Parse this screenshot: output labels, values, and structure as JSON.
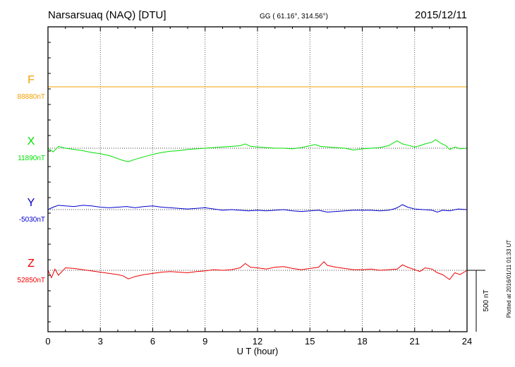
{
  "header": {
    "station": "Narsarsuaq (NAQ)  [DTU]",
    "coords": "GG ( 61.16°, 314.56°)",
    "date": "2015/12/11"
  },
  "side_note": "Plotted at 2016/01/11 01:33 UT",
  "colors": {
    "F": "#f0a000",
    "X": "#00e000",
    "Y": "#0000cc",
    "Z": "#ee0000",
    "axis": "#000000",
    "grid": "#333333"
  },
  "chart_data": {
    "type": "line",
    "title": "Narsarsuaq (NAQ)  [DTU]",
    "xlabel": "U T (hour)",
    "xlim": [
      0,
      24
    ],
    "xticks": [
      "0",
      "3",
      "6",
      "9",
      "12",
      "15",
      "18",
      "21",
      "24"
    ],
    "grid": true,
    "scale_bar": {
      "label": "500 nT",
      "nT": 500
    },
    "series": [
      {
        "name": "F",
        "baseline_label": "88880nT",
        "baseline_nT": 88880,
        "hours": [
          0,
          24
        ],
        "offsets_nT": [
          0,
          0
        ]
      },
      {
        "name": "X",
        "baseline_label": "11890nT",
        "baseline_nT": 11890,
        "hours": [
          0,
          0.3,
          0.6,
          1,
          1.5,
          2,
          2.5,
          3,
          3.5,
          4,
          4.3,
          4.6,
          5,
          5.5,
          6,
          6.5,
          7,
          7.5,
          8,
          8.5,
          9,
          9.5,
          10,
          10.5,
          11,
          11.3,
          11.6,
          12,
          12.5,
          13,
          13.5,
          14,
          14.5,
          15,
          15.3,
          15.6,
          16,
          16.5,
          17,
          17.5,
          18,
          18.5,
          19,
          19.5,
          19.8,
          20,
          20.3,
          20.6,
          21,
          21.3,
          21.6,
          22,
          22.2,
          22.5,
          22.8,
          23,
          23.3,
          23.6,
          24
        ],
        "offsets_nT": [
          0,
          -30,
          15,
          0,
          -10,
          -20,
          -35,
          -45,
          -60,
          -85,
          -100,
          -110,
          -90,
          -70,
          -50,
          -35,
          -25,
          -20,
          -10,
          -5,
          0,
          5,
          10,
          15,
          20,
          35,
          15,
          10,
          5,
          0,
          0,
          -5,
          5,
          20,
          30,
          15,
          10,
          5,
          0,
          -15,
          -5,
          0,
          5,
          20,
          45,
          60,
          35,
          25,
          10,
          20,
          35,
          50,
          70,
          40,
          20,
          -10,
          10,
          -5,
          0
        ]
      },
      {
        "name": "Y",
        "baseline_label": "-5030nT",
        "baseline_nT": -5030,
        "hours": [
          0,
          0.3,
          0.6,
          1,
          1.5,
          2,
          2.5,
          3,
          3.5,
          4,
          4.5,
          5,
          5.5,
          6,
          6.5,
          7,
          7.5,
          8,
          8.5,
          9,
          9.5,
          10,
          10.5,
          11,
          11.5,
          12,
          12.5,
          13,
          13.5,
          14,
          14.5,
          15,
          15.5,
          16,
          16.5,
          17,
          17.5,
          18,
          18.5,
          19,
          19.5,
          19.8,
          20,
          20.3,
          20.6,
          21,
          21.5,
          22,
          22.3,
          22.6,
          23,
          23.5,
          24
        ],
        "offsets_nT": [
          0,
          20,
          35,
          30,
          25,
          35,
          30,
          20,
          15,
          20,
          25,
          15,
          25,
          30,
          20,
          15,
          10,
          5,
          10,
          15,
          5,
          -5,
          0,
          -5,
          -10,
          -5,
          -10,
          -5,
          0,
          -10,
          -15,
          -10,
          -5,
          -20,
          -15,
          -10,
          -5,
          -5,
          -5,
          -10,
          -5,
          5,
          15,
          40,
          20,
          5,
          0,
          -5,
          -20,
          -5,
          -10,
          5,
          0
        ]
      },
      {
        "name": "Z",
        "baseline_label": "52850nT",
        "baseline_nT": 52850,
        "hours": [
          0,
          0.2,
          0.4,
          0.6,
          1,
          1.5,
          2,
          2.5,
          3,
          3.5,
          4,
          4.3,
          4.6,
          5,
          5.5,
          6,
          6.5,
          7,
          7.5,
          8,
          8.5,
          9,
          9.5,
          10,
          10.5,
          11,
          11.3,
          11.6,
          12,
          12.5,
          13,
          13.5,
          14,
          14.5,
          15,
          15.5,
          15.8,
          16,
          16.5,
          17,
          17.5,
          18,
          18.5,
          19,
          19.5,
          20,
          20.3,
          20.6,
          21,
          21.3,
          21.6,
          22,
          22.3,
          22.6,
          23,
          23.3,
          23.6,
          24
        ],
        "offsets_nT": [
          0,
          -60,
          10,
          -40,
          20,
          15,
          5,
          -5,
          -15,
          -25,
          -35,
          -45,
          -70,
          -50,
          -35,
          -25,
          -15,
          -10,
          -15,
          -20,
          -10,
          -5,
          5,
          0,
          5,
          20,
          55,
          25,
          20,
          10,
          25,
          30,
          15,
          5,
          15,
          25,
          70,
          40,
          25,
          15,
          5,
          5,
          10,
          0,
          5,
          10,
          45,
          25,
          5,
          -10,
          20,
          10,
          -20,
          -35,
          -75,
          -20,
          -35,
          0
        ]
      }
    ]
  }
}
